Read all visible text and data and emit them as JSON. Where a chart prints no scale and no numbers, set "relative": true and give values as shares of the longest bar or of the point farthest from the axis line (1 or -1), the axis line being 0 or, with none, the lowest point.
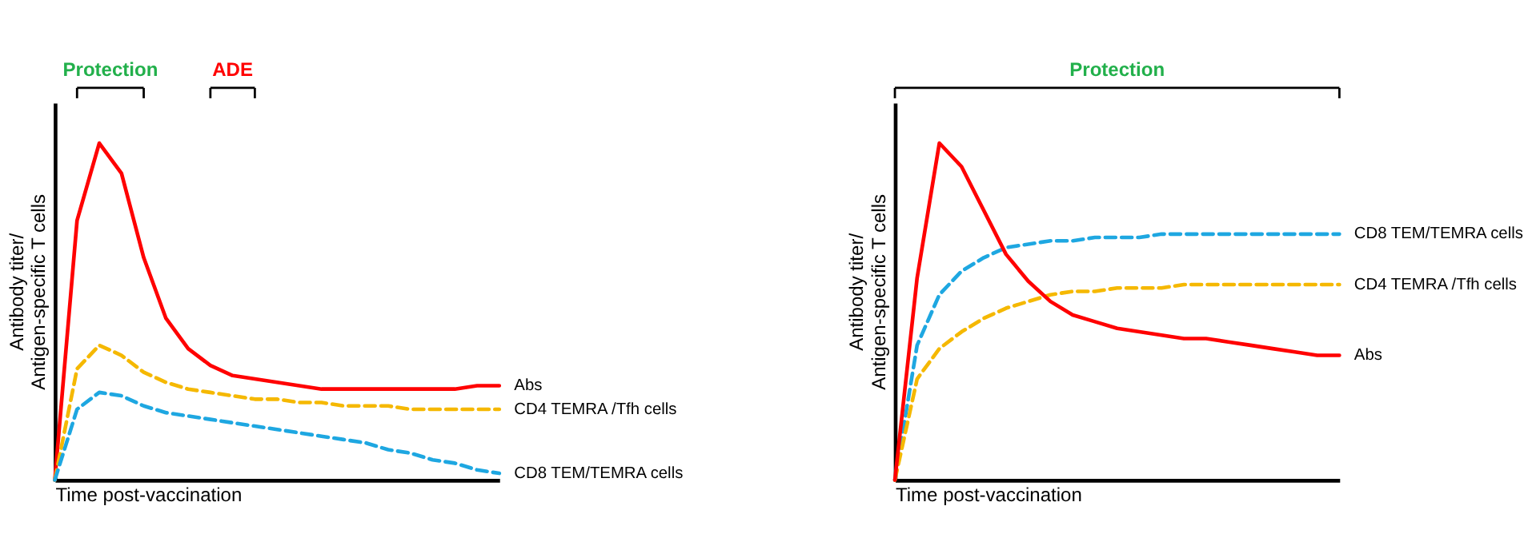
{
  "chart_data": [
    {
      "type": "line",
      "relative": true,
      "xlabel": "Time post-vaccination",
      "ylabel": "Antibody titer/\nAntigen-specific T cells",
      "grid": false,
      "tick_labels": false,
      "annotations": [
        "Protection",
        "ADE"
      ],
      "categories": [
        null,
        null,
        null,
        null,
        null,
        null,
        null,
        null,
        null,
        null,
        null,
        null,
        null,
        null,
        null,
        null,
        null,
        null,
        null,
        null,
        null
      ],
      "series": [
        {
          "name": "Abs",
          "color": "#ff0000",
          "line_style": "solid",
          "values": [
            0,
            0.77,
            1.0,
            0.91,
            0.66,
            0.48,
            0.39,
            0.34,
            0.31,
            0.3,
            0.29,
            0.28,
            0.27,
            0.27,
            0.27,
            0.27,
            0.27,
            0.27,
            0.27,
            0.28,
            0.28
          ]
        },
        {
          "name": "CD4 TEMRA /Tfh cells",
          "color": "#f5b800",
          "line_style": "dashed",
          "values": [
            0,
            0.33,
            0.4,
            0.37,
            0.32,
            0.29,
            0.27,
            0.26,
            0.25,
            0.24,
            0.24,
            0.23,
            0.23,
            0.22,
            0.22,
            0.22,
            0.21,
            0.21,
            0.21,
            0.21,
            0.21
          ]
        },
        {
          "name": "CD8 TEM/TEMRA cells",
          "color": "#1ea7e1",
          "line_style": "dashed",
          "values": [
            0,
            0.21,
            0.26,
            0.25,
            0.22,
            0.2,
            0.19,
            0.18,
            0.17,
            0.16,
            0.15,
            0.14,
            0.13,
            0.12,
            0.11,
            0.09,
            0.08,
            0.06,
            0.05,
            0.03,
            0.02
          ]
        }
      ]
    },
    {
      "type": "line",
      "relative": true,
      "xlabel": "Time post-vaccination",
      "ylabel": "Antibody titer/\nAntigen-specific T cells",
      "grid": false,
      "tick_labels": false,
      "annotations": [
        "Protection"
      ],
      "categories": [
        null,
        null,
        null,
        null,
        null,
        null,
        null,
        null,
        null,
        null,
        null,
        null,
        null,
        null,
        null,
        null,
        null,
        null,
        null,
        null,
        null
      ],
      "series": [
        {
          "name": "CD8 TEM/TEMRA cells",
          "color": "#1ea7e1",
          "line_style": "dashed",
          "values": [
            0,
            0.4,
            0.55,
            0.62,
            0.66,
            0.69,
            0.7,
            0.71,
            0.71,
            0.72,
            0.72,
            0.72,
            0.73,
            0.73,
            0.73,
            0.73,
            0.73,
            0.73,
            0.73,
            0.73,
            0.73
          ]
        },
        {
          "name": "CD4 TEMRA /Tfh cells",
          "color": "#f5b800",
          "line_style": "dashed",
          "values": [
            0,
            0.3,
            0.39,
            0.44,
            0.48,
            0.51,
            0.53,
            0.55,
            0.56,
            0.56,
            0.57,
            0.57,
            0.57,
            0.58,
            0.58,
            0.58,
            0.58,
            0.58,
            0.58,
            0.58,
            0.58
          ]
        },
        {
          "name": "Abs",
          "color": "#ff0000",
          "line_style": "solid",
          "values": [
            0,
            0.6,
            1.0,
            0.93,
            0.8,
            0.67,
            0.59,
            0.53,
            0.49,
            0.47,
            0.45,
            0.44,
            0.43,
            0.42,
            0.42,
            0.41,
            0.4,
            0.39,
            0.38,
            0.37,
            0.37
          ]
        }
      ]
    }
  ]
}
